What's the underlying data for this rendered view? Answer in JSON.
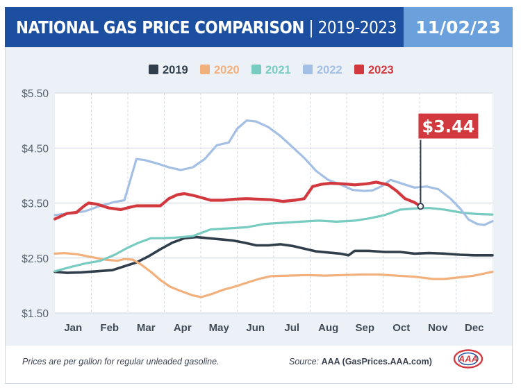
{
  "header": {
    "title": "NATIONAL GAS PRICE COMPARISON",
    "separator": "|",
    "years": "2019-2023",
    "date": "11/02/23"
  },
  "colors": {
    "header_blue": "#1d4fa0",
    "date_blue": "#6aa0db",
    "callout_red": "#d2393f"
  },
  "chart_data": {
    "type": "line",
    "ylim": [
      1.5,
      5.5
    ],
    "y_ticks": [
      "$5.50",
      "$4.50",
      "$3.50",
      "$2.50",
      "$1.50"
    ],
    "y_tick_values": [
      5.5,
      4.5,
      3.5,
      2.5,
      1.5
    ],
    "months": [
      "Jan",
      "Feb",
      "Mar",
      "Apr",
      "May",
      "Jun",
      "Jul",
      "Aug",
      "Sep",
      "Oct",
      "Nov",
      "Dec"
    ],
    "x_range_days": [
      0,
      365
    ],
    "grid": true,
    "legend_position": "top-center",
    "callout": {
      "label": "$3.44",
      "series": "2023",
      "day": 305,
      "value": 3.44
    },
    "series": [
      {
        "name": "2019",
        "color": "#303d4a",
        "points": [
          [
            0,
            2.25
          ],
          [
            10,
            2.23
          ],
          [
            22,
            2.24
          ],
          [
            35,
            2.26
          ],
          [
            48,
            2.28
          ],
          [
            58,
            2.35
          ],
          [
            68,
            2.42
          ],
          [
            78,
            2.53
          ],
          [
            88,
            2.66
          ],
          [
            98,
            2.78
          ],
          [
            108,
            2.86
          ],
          [
            118,
            2.88
          ],
          [
            128,
            2.86
          ],
          [
            138,
            2.84
          ],
          [
            148,
            2.82
          ],
          [
            158,
            2.78
          ],
          [
            168,
            2.73
          ],
          [
            178,
            2.73
          ],
          [
            188,
            2.75
          ],
          [
            198,
            2.72
          ],
          [
            208,
            2.67
          ],
          [
            218,
            2.62
          ],
          [
            228,
            2.6
          ],
          [
            238,
            2.58
          ],
          [
            245,
            2.55
          ],
          [
            250,
            2.63
          ],
          [
            262,
            2.63
          ],
          [
            275,
            2.61
          ],
          [
            288,
            2.61
          ],
          [
            300,
            2.58
          ],
          [
            312,
            2.59
          ],
          [
            325,
            2.58
          ],
          [
            338,
            2.56
          ],
          [
            350,
            2.55
          ],
          [
            365,
            2.55
          ]
        ]
      },
      {
        "name": "2020",
        "color": "#f2b07c",
        "points": [
          [
            0,
            2.58
          ],
          [
            8,
            2.59
          ],
          [
            18,
            2.57
          ],
          [
            30,
            2.52
          ],
          [
            42,
            2.47
          ],
          [
            52,
            2.45
          ],
          [
            58,
            2.48
          ],
          [
            65,
            2.47
          ],
          [
            72,
            2.38
          ],
          [
            80,
            2.25
          ],
          [
            88,
            2.1
          ],
          [
            96,
            1.98
          ],
          [
            105,
            1.9
          ],
          [
            115,
            1.82
          ],
          [
            122,
            1.79
          ],
          [
            130,
            1.84
          ],
          [
            140,
            1.92
          ],
          [
            150,
            1.98
          ],
          [
            160,
            2.05
          ],
          [
            170,
            2.12
          ],
          [
            180,
            2.17
          ],
          [
            195,
            2.18
          ],
          [
            210,
            2.19
          ],
          [
            225,
            2.18
          ],
          [
            240,
            2.19
          ],
          [
            255,
            2.2
          ],
          [
            270,
            2.2
          ],
          [
            285,
            2.18
          ],
          [
            300,
            2.16
          ],
          [
            315,
            2.12
          ],
          [
            325,
            2.12
          ],
          [
            338,
            2.15
          ],
          [
            350,
            2.18
          ],
          [
            365,
            2.25
          ]
        ]
      },
      {
        "name": "2021",
        "color": "#78cbc1",
        "points": [
          [
            0,
            2.26
          ],
          [
            12,
            2.33
          ],
          [
            25,
            2.4
          ],
          [
            38,
            2.45
          ],
          [
            50,
            2.56
          ],
          [
            60,
            2.68
          ],
          [
            70,
            2.78
          ],
          [
            80,
            2.86
          ],
          [
            90,
            2.86
          ],
          [
            100,
            2.87
          ],
          [
            115,
            2.9
          ],
          [
            130,
            3.02
          ],
          [
            145,
            3.04
          ],
          [
            160,
            3.06
          ],
          [
            175,
            3.12
          ],
          [
            190,
            3.14
          ],
          [
            205,
            3.16
          ],
          [
            220,
            3.18
          ],
          [
            235,
            3.16
          ],
          [
            250,
            3.18
          ],
          [
            262,
            3.22
          ],
          [
            275,
            3.28
          ],
          [
            288,
            3.38
          ],
          [
            300,
            3.4
          ],
          [
            312,
            3.41
          ],
          [
            325,
            3.38
          ],
          [
            338,
            3.33
          ],
          [
            352,
            3.3
          ],
          [
            365,
            3.29
          ]
        ]
      },
      {
        "name": "2022",
        "color": "#a4bfe4",
        "points": [
          [
            0,
            3.28
          ],
          [
            12,
            3.31
          ],
          [
            25,
            3.35
          ],
          [
            38,
            3.45
          ],
          [
            50,
            3.52
          ],
          [
            58,
            3.55
          ],
          [
            62,
            3.85
          ],
          [
            68,
            4.3
          ],
          [
            75,
            4.28
          ],
          [
            85,
            4.22
          ],
          [
            95,
            4.15
          ],
          [
            105,
            4.1
          ],
          [
            115,
            4.15
          ],
          [
            125,
            4.3
          ],
          [
            135,
            4.55
          ],
          [
            145,
            4.6
          ],
          [
            152,
            4.85
          ],
          [
            160,
            5.0
          ],
          [
            168,
            4.98
          ],
          [
            178,
            4.88
          ],
          [
            188,
            4.72
          ],
          [
            198,
            4.52
          ],
          [
            208,
            4.32
          ],
          [
            218,
            4.08
          ],
          [
            228,
            3.92
          ],
          [
            238,
            3.84
          ],
          [
            248,
            3.74
          ],
          [
            258,
            3.72
          ],
          [
            265,
            3.73
          ],
          [
            272,
            3.8
          ],
          [
            280,
            3.92
          ],
          [
            290,
            3.85
          ],
          [
            300,
            3.78
          ],
          [
            310,
            3.8
          ],
          [
            320,
            3.75
          ],
          [
            330,
            3.58
          ],
          [
            338,
            3.4
          ],
          [
            345,
            3.2
          ],
          [
            352,
            3.12
          ],
          [
            358,
            3.1
          ],
          [
            365,
            3.17
          ]
        ]
      },
      {
        "name": "2023",
        "color": "#d2393f",
        "points": [
          [
            0,
            3.21
          ],
          [
            10,
            3.31
          ],
          [
            18,
            3.33
          ],
          [
            24,
            3.44
          ],
          [
            28,
            3.5
          ],
          [
            35,
            3.48
          ],
          [
            45,
            3.41
          ],
          [
            55,
            3.38
          ],
          [
            62,
            3.42
          ],
          [
            68,
            3.45
          ],
          [
            78,
            3.45
          ],
          [
            88,
            3.45
          ],
          [
            95,
            3.58
          ],
          [
            102,
            3.65
          ],
          [
            108,
            3.67
          ],
          [
            115,
            3.64
          ],
          [
            122,
            3.6
          ],
          [
            130,
            3.55
          ],
          [
            140,
            3.55
          ],
          [
            150,
            3.57
          ],
          [
            160,
            3.58
          ],
          [
            170,
            3.57
          ],
          [
            180,
            3.56
          ],
          [
            190,
            3.53
          ],
          [
            200,
            3.55
          ],
          [
            208,
            3.58
          ],
          [
            215,
            3.8
          ],
          [
            222,
            3.84
          ],
          [
            230,
            3.86
          ],
          [
            240,
            3.85
          ],
          [
            250,
            3.83
          ],
          [
            260,
            3.85
          ],
          [
            268,
            3.88
          ],
          [
            278,
            3.83
          ],
          [
            285,
            3.72
          ],
          [
            292,
            3.58
          ],
          [
            300,
            3.51
          ],
          [
            305,
            3.44
          ]
        ]
      }
    ]
  },
  "footer": {
    "note": "Prices are per gallon for regular unleaded gasoline.",
    "source_label": "Source:",
    "source_name": "AAA (GasPrices.AAA.com)",
    "logo_text": "AAA"
  }
}
